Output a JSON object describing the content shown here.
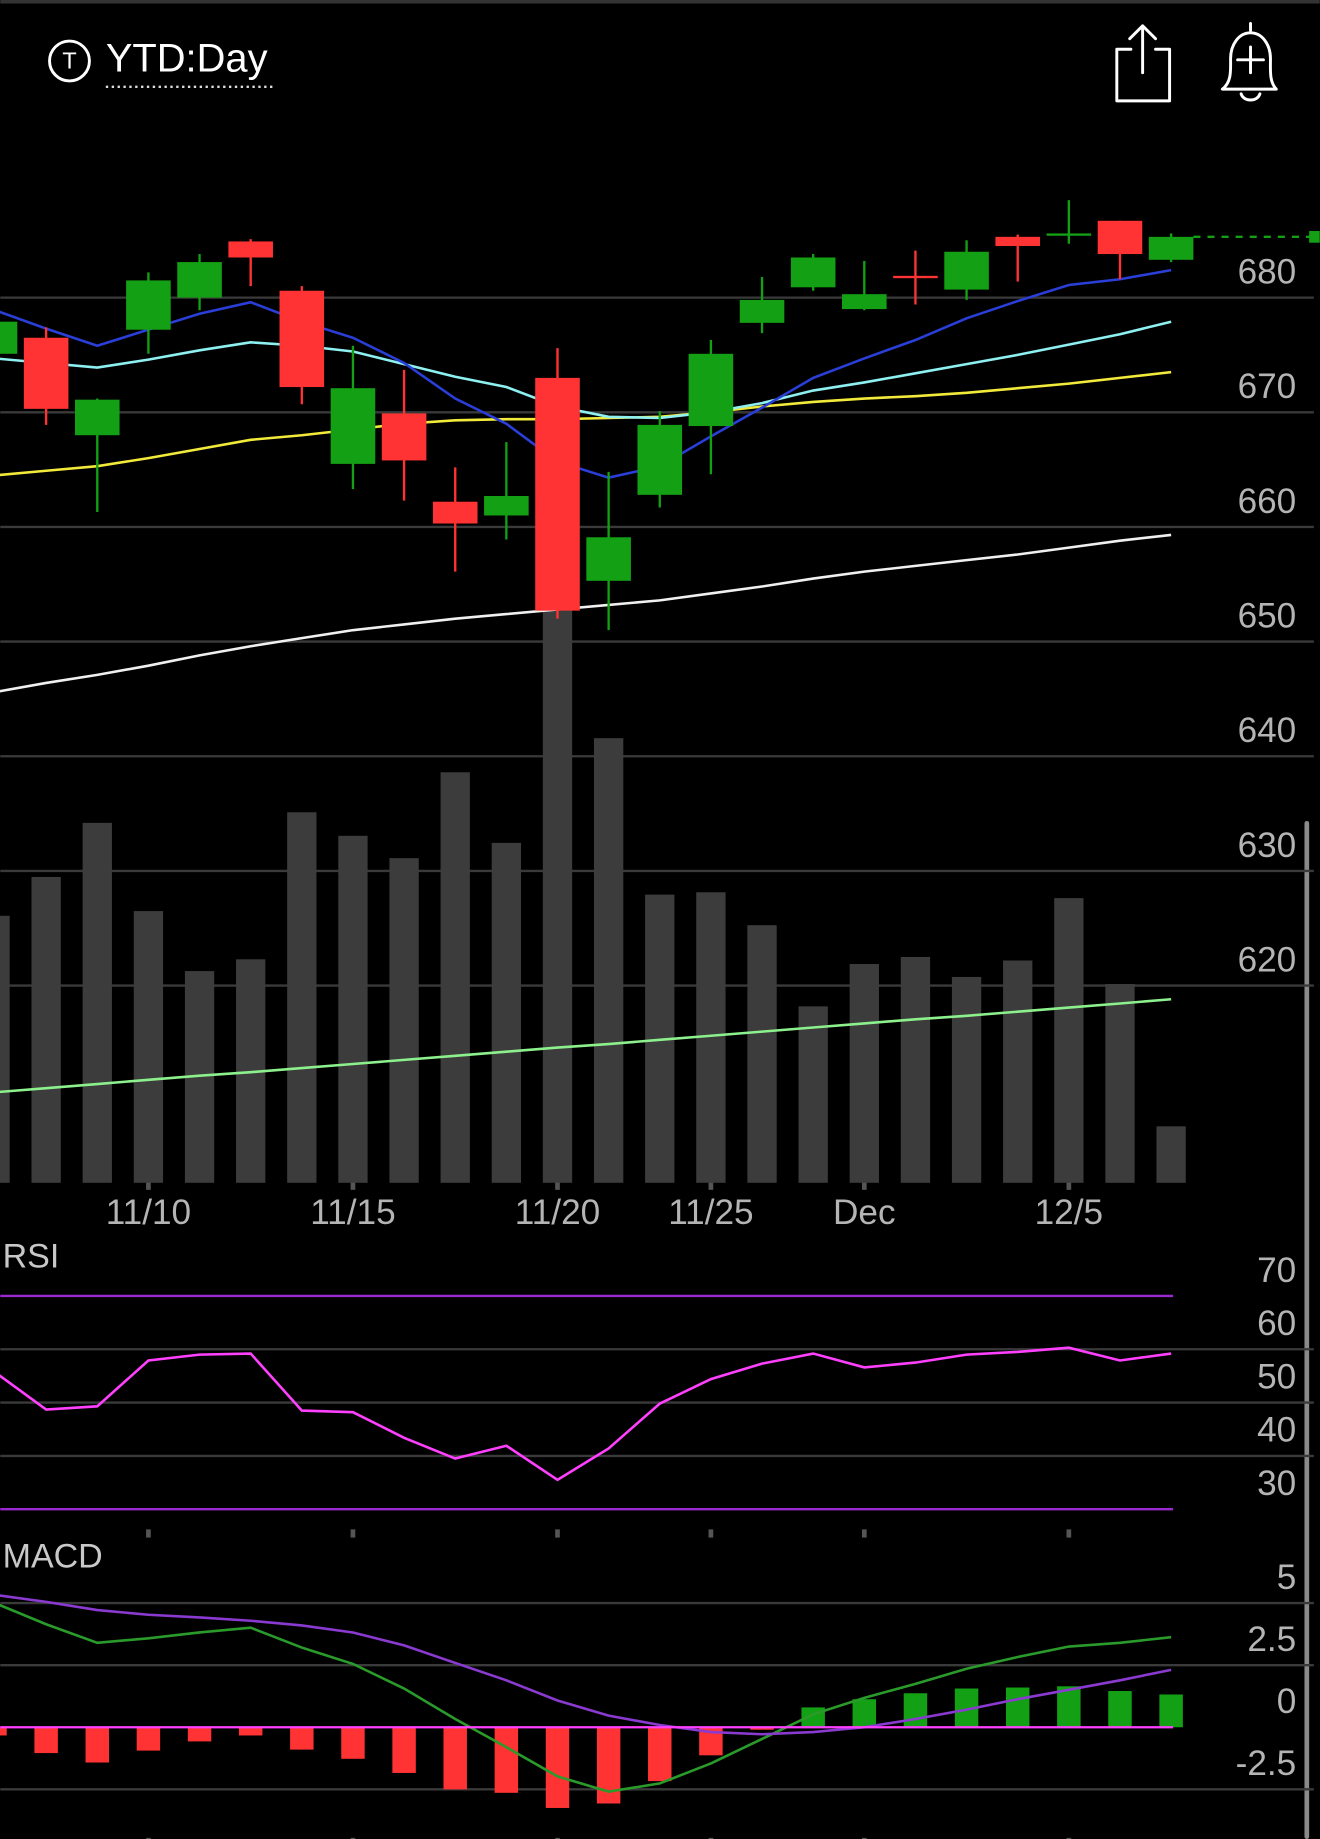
{
  "header": {
    "icon_letter": "T",
    "title": "YTD:Day"
  },
  "chart_data": [
    {
      "type": "candlestick",
      "categories": [
        null,
        null,
        null,
        "11/10",
        null,
        null,
        null,
        "11/15",
        null,
        null,
        null,
        "11/20",
        null,
        null,
        "11/25",
        null,
        null,
        "Dec",
        null,
        null,
        null,
        "12/5",
        null,
        null
      ],
      "open": [
        675.1,
        676.5,
        668.0,
        677.2,
        680.0,
        684.9,
        680.6,
        665.5,
        669.9,
        662.2,
        661.0,
        673.0,
        655.3,
        662.8,
        668.8,
        677.8,
        680.9,
        679.0,
        681.9,
        680.7,
        685.3,
        685.4,
        686.7,
        683.3
      ],
      "high": [
        678.1,
        677.4,
        671.2,
        682.2,
        683.8,
        685.1,
        681.0,
        675.8,
        673.7,
        665.2,
        667.4,
        675.6,
        664.8,
        670.1,
        676.3,
        681.8,
        683.8,
        683.2,
        684.1,
        685.0,
        685.5,
        688.5,
        686.7,
        685.6
      ],
      "low": [
        674.9,
        668.9,
        661.3,
        675.1,
        678.9,
        681.0,
        670.7,
        663.3,
        662.3,
        656.1,
        658.9,
        652.0,
        651.0,
        661.7,
        664.6,
        676.9,
        680.6,
        678.9,
        679.4,
        679.8,
        681.4,
        684.7,
        681.6,
        683.1
      ],
      "close": [
        677.9,
        670.3,
        671.1,
        681.5,
        683.1,
        683.5,
        672.2,
        672.1,
        665.8,
        660.3,
        662.7,
        652.7,
        659.1,
        668.9,
        675.1,
        679.8,
        683.5,
        680.3,
        681.7,
        684.0,
        684.5,
        685.6,
        683.8,
        685.3
      ],
      "up_color": "#14a014",
      "down_color": "#ff3333",
      "series": [
        {
          "type": "bar",
          "axis": "y2",
          "color": "#3c3c3c",
          "values": [
            45.4,
            52.0,
            61.2,
            46.2,
            36.0,
            38.0,
            63.0,
            59.0,
            55.2,
            69.8,
            57.8,
            97.6,
            75.6,
            49.0,
            49.4,
            43.8,
            30.0,
            37.2,
            38.4,
            35.0,
            37.8,
            48.4,
            33.8,
            9.6
          ]
        },
        {
          "axis": "y2",
          "color": "#8cf08c",
          "values": [
            15.4,
            16.1,
            16.8,
            17.5,
            18.2,
            18.8,
            19.5,
            20.2,
            20.9,
            21.6,
            22.3,
            23.0,
            23.6,
            24.3,
            25.0,
            25.7,
            26.4,
            27.1,
            27.8,
            28.4,
            29.1,
            29.8,
            30.5,
            31.2
          ]
        },
        {
          "color": "#f0f0f0",
          "values": [
            645.6,
            646.4,
            647.1,
            647.9,
            648.8,
            649.6,
            650.3,
            651.0,
            651.5,
            652.0,
            652.4,
            652.8,
            653.2,
            653.6,
            654.2,
            654.8,
            655.5,
            656.1,
            656.6,
            657.1,
            657.6,
            658.2,
            658.8,
            659.3
          ]
        },
        {
          "color": "#f2ea3a",
          "values": [
            664.5,
            664.9,
            665.3,
            666.0,
            666.8,
            667.6,
            668.0,
            668.5,
            669.0,
            669.3,
            669.4,
            669.4,
            669.5,
            669.6,
            670.0,
            670.5,
            670.9,
            671.2,
            671.4,
            671.7,
            672.1,
            672.5,
            673.0,
            673.5
          ]
        },
        {
          "color": "#8ef0f0",
          "values": [
            674.7,
            674.3,
            673.9,
            674.6,
            675.4,
            676.1,
            675.8,
            675.3,
            674.2,
            673.1,
            672.2,
            670.5,
            669.6,
            669.5,
            670.0,
            670.8,
            671.9,
            672.6,
            673.4,
            674.2,
            675.0,
            675.9,
            676.8,
            677.9
          ]
        },
        {
          "color": "#2a3ed8",
          "values": [
            678.9,
            677.3,
            675.8,
            677.2,
            678.6,
            679.6,
            677.9,
            676.5,
            674.3,
            671.2,
            669.0,
            665.7,
            664.3,
            665.3,
            667.9,
            670.4,
            673.0,
            674.7,
            676.3,
            678.2,
            679.7,
            681.1,
            681.6,
            682.4
          ]
        }
      ],
      "ylim": [
        602.8,
        690
      ],
      "yticks": [
        680,
        670,
        660,
        650,
        640,
        630,
        620
      ],
      "y2lim": [
        0,
        170
      ],
      "grid": true
    },
    {
      "type": "line",
      "title": "RSI",
      "series": [
        {
          "color": "#ff40ff",
          "values": [
            55.7,
            48.7,
            49.3,
            57.9,
            59.0,
            59.2,
            48.5,
            48.2,
            43.4,
            39.5,
            41.9,
            35.5,
            41.4,
            49.8,
            54.4,
            57.3,
            59.2,
            56.6,
            57.5,
            59.0,
            59.5,
            60.3,
            57.9,
            59.2
          ]
        }
      ],
      "ylim": [
        26,
        80
      ],
      "yticks": [
        70,
        60,
        50,
        40,
        30
      ],
      "levels": [
        70,
        30
      ],
      "level_color": "#9a2ad0",
      "grid": true
    },
    {
      "type": "macd",
      "title": "MACD",
      "series": [
        {
          "type": "bar",
          "up_color": "#14a014",
          "down_color": "#ff3333",
          "values": [
            -0.33,
            -1.04,
            -1.42,
            -0.94,
            -0.57,
            -0.33,
            -0.9,
            -1.27,
            -1.84,
            -2.5,
            -2.64,
            -3.25,
            -3.07,
            -2.17,
            -1.13,
            -0.1,
            0.8,
            1.13,
            1.37,
            1.56,
            1.6,
            1.65,
            1.46,
            1.32
          ]
        },
        {
          "color": "#2a9a2a",
          "values": [
            5.0,
            4.15,
            3.4,
            3.58,
            3.82,
            4.01,
            3.21,
            2.55,
            1.56,
            0.33,
            -0.8,
            -1.98,
            -2.59,
            -2.26,
            -1.46,
            -0.47,
            0.52,
            1.18,
            1.75,
            2.36,
            2.83,
            3.25,
            3.4,
            3.63
          ]
        },
        {
          "color": "#8a3ad0",
          "values": [
            5.33,
            5.05,
            4.72,
            4.53,
            4.42,
            4.29,
            4.1,
            3.82,
            3.3,
            2.59,
            1.89,
            1.08,
            0.47,
            0.09,
            -0.19,
            -0.28,
            -0.19,
            0,
            0.33,
            0.71,
            1.13,
            1.51,
            1.89,
            2.31
          ]
        }
      ],
      "ylim": [
        -4.5,
        7.45
      ],
      "yticks": [
        5,
        2.5,
        0,
        -2.5
      ],
      "zero_line_color": "#ff40ff",
      "grid": true
    }
  ]
}
